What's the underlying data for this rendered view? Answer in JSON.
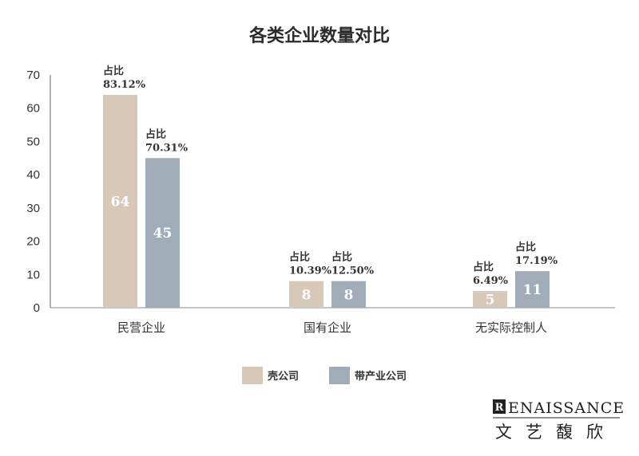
{
  "chart_data": {
    "type": "bar",
    "title": "各类企业数量对比",
    "categories": [
      "民营企业",
      "国有企业",
      "无实际控制人"
    ],
    "series": [
      {
        "name": "壳公司",
        "color": "#d8c8b8",
        "values": [
          64,
          8,
          5
        ],
        "shares": [
          "83.12%",
          "10.39%",
          "6.49%"
        ]
      },
      {
        "name": "带产业公司",
        "color": "#a1acb9",
        "values": [
          45,
          8,
          11
        ],
        "shares": [
          "70.31%",
          "12.50%",
          "17.19%"
        ]
      }
    ],
    "share_label": "占比",
    "ylim": [
      0,
      70
    ],
    "yticks": [
      0,
      10,
      20,
      30,
      40,
      50,
      60,
      70
    ],
    "grid": false,
    "legend_position": "bottom"
  },
  "brand": {
    "logo_letter": "R",
    "name_en": "ENAISSANCE",
    "name_cn": "文艺馥欣"
  }
}
